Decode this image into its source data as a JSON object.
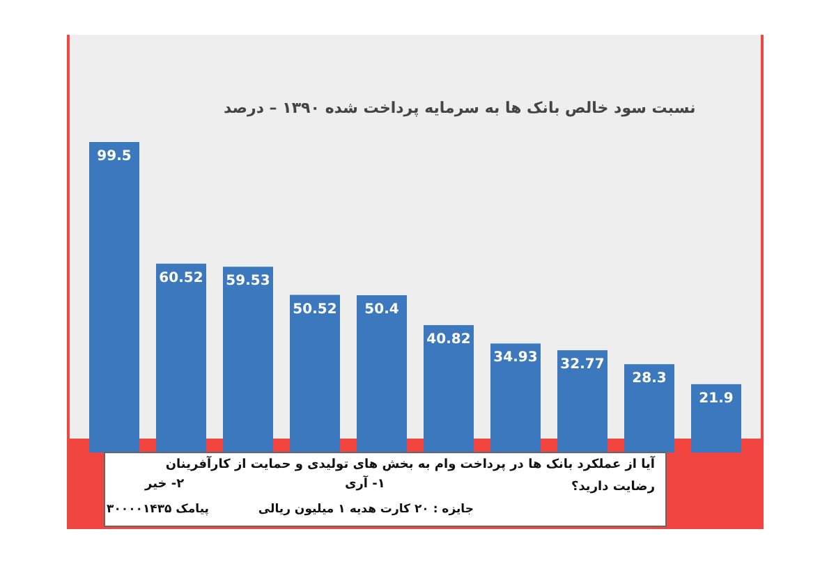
{
  "chart_data": {
    "type": "bar",
    "title": "نسبت سود خالص بانک ها به سرمایه پرداخت شده ۱۳۹۰ – درصد",
    "categories": [
      null,
      null,
      null,
      null,
      null,
      null,
      null,
      null,
      null,
      null
    ],
    "values": [
      99.5,
      60.52,
      59.53,
      50.52,
      50.4,
      40.82,
      34.93,
      32.77,
      28.3,
      21.9
    ],
    "color": "#3b78bd",
    "data_labels": true,
    "annotations": [
      "آیا از عملکرد بانک ها در پرداخت وام به بخش های تولیدی و حمایت از کارآفرینان",
      "رضایت دارید؟",
      "۱- آری",
      "۲- خیر",
      "جایزه : ۲۰ کارت هدیه ۱ میلیون ریالی",
      "پیامک ۳۰۰۰۰۱۴۳۵"
    ]
  }
}
